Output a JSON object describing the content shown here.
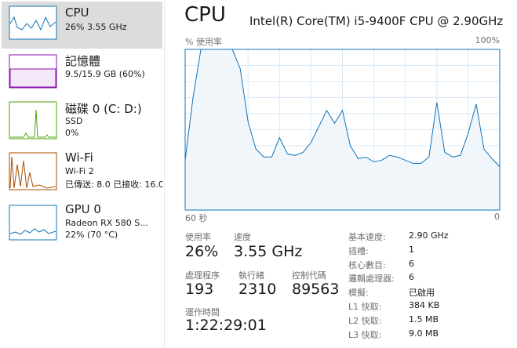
{
  "sidebar": [
    {
      "title": "CPU",
      "lines": [
        "26% 3.55 GHz"
      ]
    },
    {
      "title": "記憶體",
      "lines": [
        "9.5/15.9 GB (60%)"
      ]
    },
    {
      "title": "磁碟 0 (C: D:)",
      "lines": [
        "SSD",
        "0%"
      ]
    },
    {
      "title": "Wi-Fi",
      "lines": [
        "Wi-Fi 2",
        "已傳送: 8.0 已接收: 16.0"
      ]
    },
    {
      "title": "GPU 0",
      "lines": [
        "Radeon RX 580 S...",
        "22% (70 °C)"
      ]
    }
  ],
  "header": {
    "title": "CPU",
    "processor": "Intel(R) Core(TM) i5-9400F CPU @ 2.90GHz"
  },
  "graph": {
    "y_label": "% 使用率",
    "y_max_label": "100%",
    "x_start_label": "60 秒",
    "x_end_label": "0",
    "ylim": [
      0,
      100
    ],
    "values": [
      31,
      70,
      100,
      100,
      100,
      100,
      100,
      88,
      55,
      38,
      33,
      33,
      45,
      35,
      34,
      36,
      42,
      52,
      62,
      54,
      62,
      40,
      32,
      33,
      30,
      31,
      34,
      33,
      31,
      29,
      29,
      33,
      67,
      36,
      33,
      34,
      48,
      66,
      38,
      32,
      27
    ]
  },
  "stats": [
    {
      "label": "使用率",
      "value": "26%"
    },
    {
      "label": "速度",
      "value": "3.55 GHz"
    },
    {
      "label": "處理程序",
      "value": "193"
    },
    {
      "label": "執行緒",
      "value": "2310"
    },
    {
      "label": "控制代碼",
      "value": "89563"
    }
  ],
  "uptime": {
    "label": "運作時間",
    "value": "1:22:29:01"
  },
  "specs": [
    {
      "label": "基本速度:",
      "value": "2.90 GHz"
    },
    {
      "label": "插槽:",
      "value": "1"
    },
    {
      "label": "核心數目:",
      "value": "6"
    },
    {
      "label": "邏輯處理器:",
      "value": "6"
    },
    {
      "label": "模擬:",
      "value": "已啟用"
    },
    {
      "label": "L1 快取:",
      "value": "384 KB"
    },
    {
      "label": "L2 快取:",
      "value": "1.5 MB"
    },
    {
      "label": "L3 快取:",
      "value": "9.0 MB"
    }
  ]
}
